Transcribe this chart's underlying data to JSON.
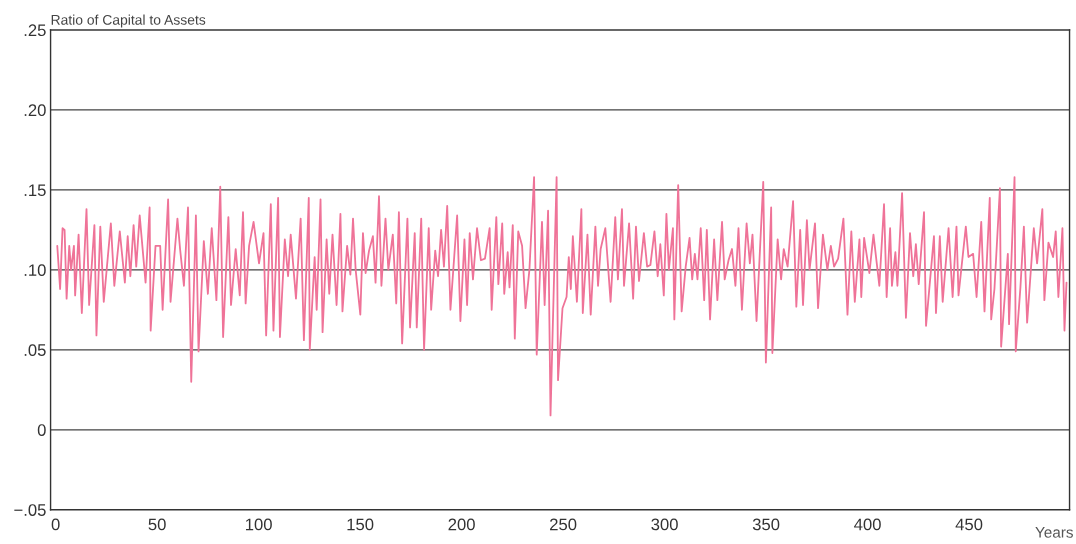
{
  "chart_data": {
    "type": "line",
    "ylabel": "Ratio of Capital to Assets",
    "xlabel": "Years",
    "xlim": [
      -2.5,
      499.5
    ],
    "xticks": [
      0,
      50,
      100,
      150,
      200,
      250,
      300,
      350,
      400,
      450
    ],
    "ylim": [
      -0.05,
      0.25
    ],
    "yticks": [
      {
        "value": -0.05,
        "label": "−.05"
      },
      {
        "value": 0,
        "label": "0"
      },
      {
        "value": 0.05,
        "label": ".05"
      },
      {
        "value": 0.1,
        "label": ".10"
      },
      {
        "value": 0.15,
        "label": ".15"
      },
      {
        "value": 0.2,
        "label": ".20"
      },
      {
        "value": 0.25,
        "label": ".25"
      }
    ],
    "grid": "y",
    "legend": false,
    "marker": "none",
    "line_style": "solid",
    "series": [
      {
        "color": "#ef7398",
        "x": [
          0.8,
          2.2,
          3.4,
          4.4,
          5.4,
          6.7,
          7.6,
          9,
          9.6,
          11.3,
          12.9,
          15.2,
          16.5,
          19.1,
          20.1,
          22,
          23.7,
          27.2,
          28.9,
          31.6,
          34.1,
          35.5,
          36.8,
          38.4,
          39.7,
          41.4,
          44.3,
          46.3,
          46.8,
          49.2,
          51.5,
          52.7,
          55.4,
          56.6,
          60,
          61.3,
          63.2,
          65.2,
          66.8,
          69.1,
          70.4,
          73,
          75,
          76.9,
          79.2,
          81.1,
          82.5,
          85.1,
          86.4,
          88.7,
          90.7,
          92.3,
          93.6,
          95.3,
          97.5,
          100.2,
          102.4,
          103.7,
          106,
          107.3,
          109.6,
          110.5,
          112.9,
          114.5,
          115.8,
          118.4,
          120.7,
          122.3,
          124.7,
          125.2,
          127.6,
          128.6,
          130.5,
          131.5,
          133.5,
          134.8,
          136.4,
          138.4,
          140.3,
          141.3,
          143.6,
          145.2,
          146.5,
          147.8,
          150.1,
          151.4,
          152.7,
          154.4,
          156.3,
          157.6,
          159.3,
          160.5,
          162.5,
          163.9,
          166.1,
          167.8,
          169.1,
          170.7,
          173.3,
          174.6,
          176.9,
          177.9,
          180.1,
          181.5,
          183.8,
          185,
          187,
          188.4,
          189.9,
          191.3,
          192.9,
          194.5,
          197.8,
          199.4,
          201.4,
          202.7,
          204,
          205.6,
          207.6,
          209.5,
          211.5,
          213.8,
          214.8,
          217.1,
          218.1,
          220,
          221,
          222.7,
          223.6,
          225.2,
          226.2,
          227.9,
          229.8,
          231.5,
          233.4,
          235.7,
          237,
          239.6,
          240.9,
          242.6,
          243.8,
          246.8,
          247.5,
          249.7,
          251.7,
          252.8,
          253.8,
          254.8,
          256.8,
          259,
          259.7,
          262,
          263.6,
          265.9,
          267.2,
          268.5,
          270.8,
          273.4,
          275.7,
          277,
          279,
          280,
          282.5,
          284.5,
          285.9,
          287.4,
          289.8,
          291.4,
          293,
          295,
          296.6,
          297.9,
          299.6,
          300.9,
          302.1,
          304.1,
          304.8,
          306.7,
          308.4,
          310.4,
          312.3,
          313.6,
          314.9,
          316.2,
          317.8,
          319.5,
          320.8,
          322.4,
          324.4,
          326,
          328.3,
          329.6,
          331.5,
          333.2,
          334.9,
          336.4,
          338.1,
          340.4,
          342,
          343.3,
          345.3,
          348.6,
          349.9,
          352.5,
          353.1,
          355.7,
          357.4,
          358.7,
          360.6,
          363.3,
          364.9,
          366.8,
          368.2,
          370.1,
          371.4,
          374.1,
          375.6,
          378,
          380.2,
          381.9,
          383.5,
          385.5,
          388.1,
          390.1,
          392,
          393.7,
          396,
          396.9,
          398.3,
          400.9,
          402.9,
          405.8,
          408.1,
          409.4,
          411.1,
          412,
          413.7,
          414.7,
          417,
          418.9,
          420.9,
          422.5,
          423.8,
          425.2,
          427.8,
          428.8,
          432.7,
          433.7,
          435.6,
          437,
          439.9,
          441.9,
          443.8,
          444.8,
          448.4,
          449.7,
          452,
          453.7,
          456,
          457.6,
          460.2,
          460.9,
          462.5,
          465.2,
          465.8,
          469.1,
          469.7,
          472.4,
          473,
          475.3,
          477,
          478.6,
          481.9,
          483.5,
          486.1,
          487.1,
          489.1,
          491.4,
          492.7,
          494,
          496,
          497,
          498
        ],
        "values": [
          0.115,
          0.088,
          0.126,
          0.125,
          0.082,
          0.115,
          0.1,
          0.115,
          0.084,
          0.122,
          0.073,
          0.138,
          0.078,
          0.128,
          0.059,
          0.127,
          0.08,
          0.129,
          0.09,
          0.124,
          0.092,
          0.121,
          0.096,
          0.128,
          0.102,
          0.134,
          0.092,
          0.139,
          0.062,
          0.115,
          0.115,
          0.075,
          0.144,
          0.08,
          0.132,
          0.113,
          0.09,
          0.139,
          0.03,
          0.134,
          0.049,
          0.118,
          0.085,
          0.126,
          0.081,
          0.152,
          0.058,
          0.133,
          0.078,
          0.113,
          0.084,
          0.136,
          0.079,
          0.115,
          0.13,
          0.104,
          0.123,
          0.059,
          0.141,
          0.062,
          0.145,
          0.058,
          0.119,
          0.096,
          0.122,
          0.082,
          0.132,
          0.056,
          0.145,
          0.05,
          0.108,
          0.075,
          0.144,
          0.061,
          0.119,
          0.085,
          0.122,
          0.078,
          0.135,
          0.074,
          0.115,
          0.097,
          0.132,
          0.1,
          0.072,
          0.123,
          0.098,
          0.112,
          0.121,
          0.092,
          0.146,
          0.09,
          0.132,
          0.1,
          0.122,
          0.079,
          0.136,
          0.054,
          0.132,
          0.064,
          0.123,
          0.064,
          0.132,
          0.05,
          0.126,
          0.075,
          0.112,
          0.096,
          0.125,
          0.102,
          0.14,
          0.075,
          0.134,
          0.068,
          0.119,
          0.078,
          0.123,
          0.094,
          0.126,
          0.106,
          0.107,
          0.126,
          0.075,
          0.133,
          0.091,
          0.129,
          0.085,
          0.111,
          0.089,
          0.128,
          0.057,
          0.124,
          0.115,
          0.076,
          0.1,
          0.158,
          0.047,
          0.13,
          0.078,
          0.137,
          0.009,
          0.158,
          0.031,
          0.076,
          0.083,
          0.108,
          0.088,
          0.121,
          0.08,
          0.138,
          0.073,
          0.122,
          0.072,
          0.127,
          0.09,
          0.113,
          0.126,
          0.08,
          0.133,
          0.094,
          0.138,
          0.09,
          0.129,
          0.082,
          0.127,
          0.093,
          0.123,
          0.102,
          0.103,
          0.124,
          0.096,
          0.116,
          0.084,
          0.135,
          0.1,
          0.126,
          0.069,
          0.153,
          0.074,
          0.102,
          0.12,
          0.094,
          0.11,
          0.094,
          0.126,
          0.081,
          0.125,
          0.069,
          0.119,
          0.081,
          0.13,
          0.094,
          0.106,
          0.113,
          0.09,
          0.126,
          0.075,
          0.129,
          0.104,
          0.122,
          0.068,
          0.155,
          0.042,
          0.139,
          0.048,
          0.119,
          0.094,
          0.113,
          0.102,
          0.143,
          0.077,
          0.125,
          0.078,
          0.131,
          0.1,
          0.129,
          0.076,
          0.122,
          0.1,
          0.115,
          0.102,
          0.107,
          0.132,
          0.072,
          0.124,
          0.08,
          0.119,
          0.083,
          0.12,
          0.098,
          0.122,
          0.09,
          0.141,
          0.083,
          0.126,
          0.09,
          0.111,
          0.09,
          0.148,
          0.07,
          0.123,
          0.096,
          0.116,
          0.091,
          0.136,
          0.065,
          0.121,
          0.073,
          0.121,
          0.08,
          0.126,
          0.083,
          0.127,
          0.084,
          0.127,
          0.108,
          0.11,
          0.083,
          0.13,
          0.074,
          0.145,
          0.069,
          0.088,
          0.151,
          0.052,
          0.11,
          0.066,
          0.158,
          0.049,
          0.089,
          0.127,
          0.067,
          0.126,
          0.104,
          0.138,
          0.081,
          0.117,
          0.108,
          0.124,
          0.083,
          0.126,
          0.062,
          0.092
        ]
      }
    ]
  }
}
